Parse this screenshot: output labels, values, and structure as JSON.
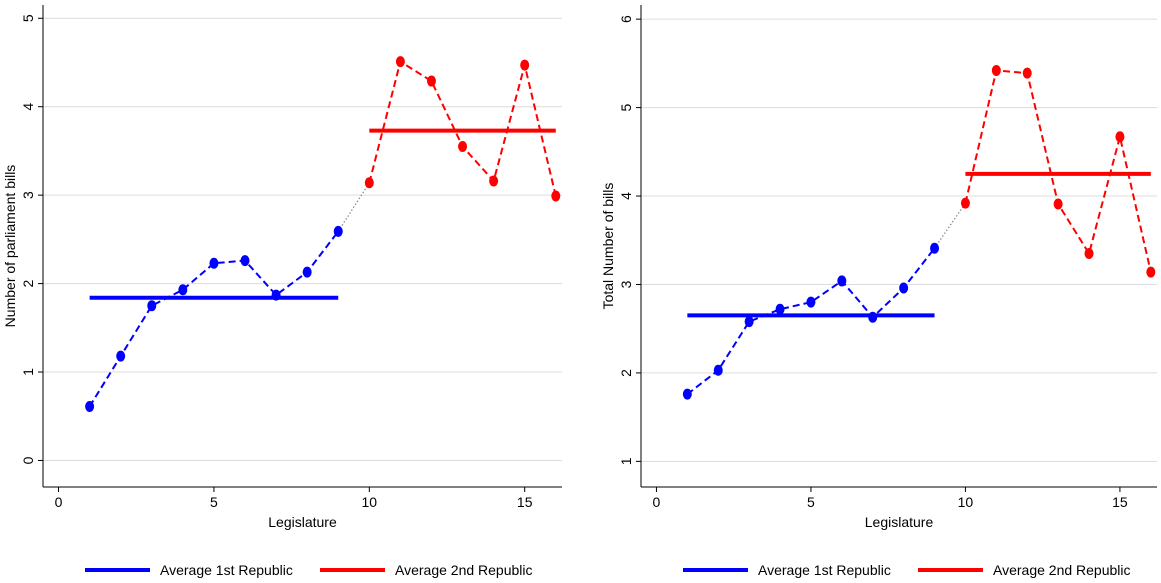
{
  "chart_data": [
    {
      "type": "line",
      "xlabel": "Legislature",
      "ylabel": "Number of parliament bills",
      "x": [
        1,
        2,
        3,
        4,
        5,
        6,
        7,
        8,
        9,
        10,
        11,
        12,
        13,
        14,
        15,
        16
      ],
      "xlim": [
        -0.5,
        16.2
      ],
      "xticks": [
        0,
        5,
        10,
        15
      ],
      "ylim": [
        -0.3,
        5.15
      ],
      "yticks": [
        0,
        1,
        2,
        3,
        4,
        5
      ],
      "grid": true,
      "series": [
        {
          "color": "#0000ff",
          "values": [
            0.61,
            1.18,
            1.75,
            1.93,
            2.23,
            2.26,
            1.87,
            2.13,
            2.59,
            null,
            null,
            null,
            null,
            null,
            null,
            null
          ]
        },
        {
          "color": "#ff0000",
          "values": [
            null,
            null,
            null,
            null,
            null,
            null,
            null,
            null,
            null,
            3.14,
            4.51,
            4.29,
            3.55,
            3.16,
            4.47,
            2.99
          ]
        }
      ],
      "averages": [
        {
          "name": "Average 1st Republic",
          "color": "#0000ff",
          "value": 1.84
        },
        {
          "name": "Average 2nd Republic",
          "color": "#ff0000",
          "value": 3.73
        }
      ]
    },
    {
      "type": "line",
      "xlabel": "Legislature",
      "ylabel": "Total Number of  bills",
      "x": [
        1,
        2,
        3,
        4,
        5,
        6,
        7,
        8,
        9,
        10,
        11,
        12,
        13,
        14,
        15,
        16
      ],
      "xlim": [
        -0.5,
        16.2
      ],
      "xticks": [
        0,
        5,
        10,
        15
      ],
      "ylim": [
        0.71,
        6.16
      ],
      "yticks": [
        1,
        2,
        3,
        4,
        5,
        6
      ],
      "grid": true,
      "series": [
        {
          "color": "#0000ff",
          "values": [
            1.76,
            2.03,
            2.58,
            2.72,
            2.8,
            3.04,
            2.63,
            2.96,
            3.41,
            null,
            null,
            null,
            null,
            null,
            null,
            null
          ]
        },
        {
          "color": "#ff0000",
          "values": [
            null,
            null,
            null,
            null,
            null,
            null,
            null,
            null,
            null,
            3.92,
            5.42,
            5.39,
            3.91,
            3.35,
            4.67,
            3.14
          ]
        }
      ],
      "averages": [
        {
          "name": "Average 1st Republic",
          "color": "#0000ff",
          "value": 2.65
        },
        {
          "name": "Average 2nd Republic",
          "color": "#ff0000",
          "value": 4.25
        }
      ]
    }
  ]
}
